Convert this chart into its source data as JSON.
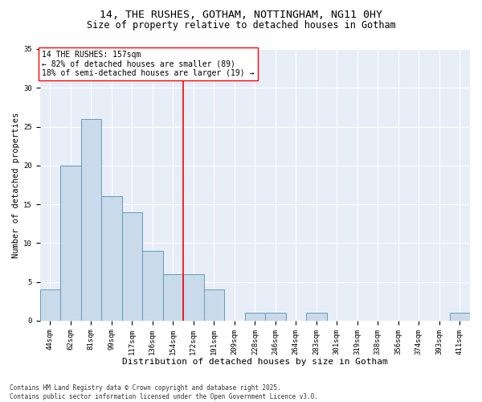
{
  "title1": "14, THE RUSHES, GOTHAM, NOTTINGHAM, NG11 0HY",
  "title2": "Size of property relative to detached houses in Gotham",
  "xlabel": "Distribution of detached houses by size in Gotham",
  "ylabel": "Number of detached properties",
  "categories": [
    "44sqm",
    "62sqm",
    "81sqm",
    "99sqm",
    "117sqm",
    "136sqm",
    "154sqm",
    "172sqm",
    "191sqm",
    "209sqm",
    "228sqm",
    "246sqm",
    "264sqm",
    "283sqm",
    "301sqm",
    "319sqm",
    "338sqm",
    "356sqm",
    "374sqm",
    "393sqm",
    "411sqm"
  ],
  "values": [
    4,
    20,
    26,
    16,
    14,
    9,
    6,
    6,
    4,
    0,
    1,
    1,
    0,
    1,
    0,
    0,
    0,
    0,
    0,
    0,
    1
  ],
  "bar_color": "#c9daea",
  "bar_edge_color": "#6699bb",
  "vline_x_index": 6,
  "vline_color": "red",
  "annotation_title": "14 THE RUSHES: 157sqm",
  "annotation_line1": "← 82% of detached houses are smaller (89)",
  "annotation_line2": "18% of semi-detached houses are larger (19) →",
  "annotation_box_color": "white",
  "annotation_box_edge": "red",
  "ylim": [
    0,
    35
  ],
  "yticks": [
    0,
    5,
    10,
    15,
    20,
    25,
    30,
    35
  ],
  "bg_color": "#e8eef8",
  "grid_color": "white",
  "footer": "Contains HM Land Registry data © Crown copyright and database right 2025.\nContains public sector information licensed under the Open Government Licence v3.0.",
  "title1_fontsize": 9.5,
  "title2_fontsize": 8.5,
  "xlabel_fontsize": 8,
  "ylabel_fontsize": 7.5,
  "tick_fontsize": 6.5,
  "annotation_fontsize": 7,
  "footer_fontsize": 5.5
}
